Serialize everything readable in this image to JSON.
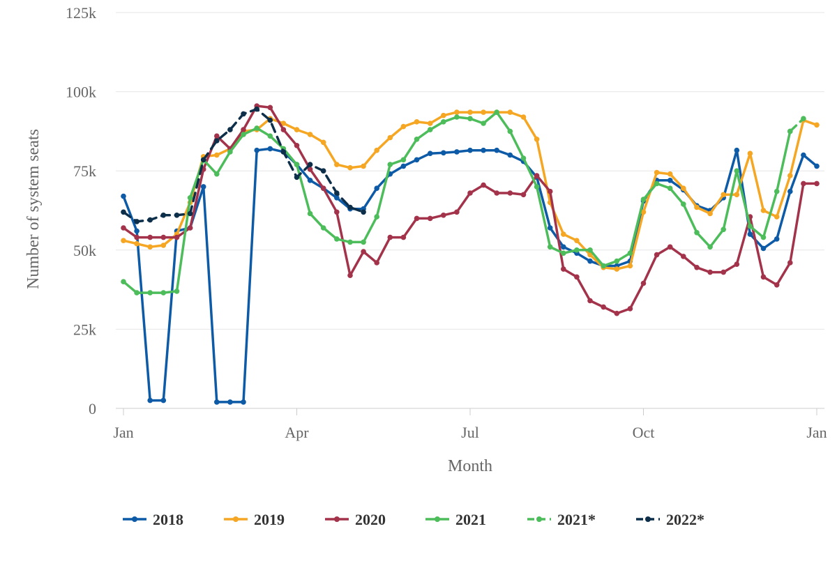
{
  "chart_data": {
    "type": "line",
    "title": "",
    "xlabel": "Month",
    "ylabel": "Number of system seats",
    "x_unit": "week of year",
    "xlim": [
      1,
      53
    ],
    "ylim": [
      0,
      125000
    ],
    "x_ticks": [
      {
        "week": 1,
        "label": "Jan"
      },
      {
        "week": 14,
        "label": "Apr"
      },
      {
        "week": 27,
        "label": "Jul"
      },
      {
        "week": 40,
        "label": "Oct"
      },
      {
        "week": 53,
        "label": "Jan"
      }
    ],
    "y_ticks": [
      {
        "value": 0,
        "label": "0"
      },
      {
        "value": 25000,
        "label": "25k"
      },
      {
        "value": 50000,
        "label": "50k"
      },
      {
        "value": 75000,
        "label": "75k"
      },
      {
        "value": 100000,
        "label": "100k"
      },
      {
        "value": 125000,
        "label": "125k"
      }
    ],
    "grid": "horizontal",
    "legend_position": "bottom",
    "series": [
      {
        "name": "2018",
        "color": "#0d5aa7",
        "dashed": false,
        "x": [
          1,
          2,
          3,
          4,
          5,
          6,
          7,
          8,
          9,
          10,
          11,
          12,
          13,
          14,
          15,
          16,
          17,
          18,
          19,
          20,
          21,
          22,
          23,
          24,
          25,
          26,
          27,
          28,
          29,
          30,
          31,
          32,
          33,
          34,
          35,
          36,
          37,
          38,
          39,
          40,
          41,
          42,
          43,
          44,
          45,
          46,
          47,
          48,
          49,
          50,
          51,
          52,
          53
        ],
        "values": [
          67000,
          56000,
          2500,
          2500,
          56000,
          57000,
          70000,
          2000,
          2000,
          2000,
          81500,
          82000,
          81000,
          77000,
          72000,
          69500,
          66500,
          63000,
          63000,
          69500,
          74000,
          76500,
          78500,
          80500,
          80700,
          81000,
          81500,
          81500,
          81500,
          80000,
          78000,
          73000,
          57000,
          51000,
          49000,
          46500,
          45000,
          45000,
          46500,
          65500,
          72000,
          72000,
          69000,
          64000,
          62500,
          66500,
          81500,
          55000,
          50500,
          53500,
          68500,
          80000,
          76500
        ]
      },
      {
        "name": "2019",
        "color": "#f5a623",
        "dashed": false,
        "x": [
          1,
          2,
          3,
          4,
          5,
          6,
          7,
          8,
          9,
          10,
          11,
          12,
          13,
          14,
          15,
          16,
          17,
          18,
          19,
          20,
          21,
          22,
          23,
          24,
          25,
          26,
          27,
          28,
          29,
          30,
          31,
          32,
          33,
          34,
          35,
          36,
          37,
          38,
          39,
          40,
          41,
          42,
          43,
          44,
          45,
          46,
          47,
          48,
          49,
          50,
          51,
          52,
          53
        ],
        "values": [
          53000,
          52000,
          51000,
          51500,
          55000,
          65000,
          79500,
          80000,
          82000,
          87500,
          88000,
          91500,
          90000,
          88000,
          86500,
          84000,
          77000,
          76000,
          76500,
          81500,
          85500,
          89000,
          90500,
          90000,
          92500,
          93500,
          93500,
          93500,
          93500,
          93500,
          92000,
          85000,
          65000,
          55000,
          53000,
          48500,
          44500,
          44000,
          45000,
          62000,
          74500,
          74000,
          69500,
          63500,
          61500,
          67500,
          67500,
          80500,
          62500,
          60500,
          73500,
          91000,
          89500
        ]
      },
      {
        "name": "2020",
        "color": "#a3334a",
        "dashed": false,
        "x": [
          1,
          2,
          3,
          4,
          5,
          6,
          7,
          8,
          9,
          10,
          11,
          12,
          13,
          14,
          15,
          16,
          17,
          18,
          19,
          20,
          21,
          22,
          23,
          24,
          25,
          26,
          27,
          28,
          29,
          30,
          31,
          32,
          33,
          34,
          35,
          36,
          37,
          38,
          39,
          40,
          41,
          42,
          43,
          44,
          45,
          46,
          47,
          48,
          49,
          50,
          51,
          52,
          53
        ],
        "values": [
          57000,
          54000,
          54000,
          54000,
          54000,
          57000,
          75500,
          86000,
          82000,
          88000,
          95500,
          95000,
          88000,
          83000,
          75500,
          69500,
          62000,
          42000,
          49500,
          46000,
          54000,
          54000,
          60000,
          60000,
          61000,
          62000,
          68000,
          70500,
          68000,
          68000,
          67500,
          73500,
          68500,
          44000,
          41500,
          34000,
          32000,
          30000,
          31500,
          39500,
          48500,
          51000,
          48000,
          44500,
          43000,
          43000,
          45500,
          60500,
          41500,
          39000,
          46000,
          71000,
          71000
        ]
      },
      {
        "name": "2021",
        "color": "#4dbd5b",
        "dashed": false,
        "x": [
          1,
          2,
          3,
          4,
          5,
          6,
          7,
          8,
          9,
          10,
          11,
          12,
          13,
          14,
          15,
          16,
          17,
          18,
          19,
          20,
          21,
          22,
          23,
          24,
          25,
          26,
          27,
          28,
          29,
          30,
          31,
          32,
          33,
          34,
          35,
          36,
          37,
          38,
          39,
          40,
          41,
          42,
          43,
          44,
          45,
          46,
          47,
          48,
          49,
          50,
          51
        ],
        "values": [
          40000,
          36500,
          36500,
          36500,
          37000,
          66500,
          78500,
          74000,
          81000,
          86500,
          88500,
          86000,
          82000,
          77000,
          61500,
          57000,
          53500,
          52500,
          52500,
          60500,
          77000,
          78500,
          85000,
          88000,
          90500,
          92000,
          91500,
          90000,
          93500,
          87500,
          79000,
          70000,
          51000,
          49000,
          50000,
          50000,
          45000,
          46500,
          49000,
          66000,
          71000,
          69500,
          64500,
          55500,
          51000,
          56500,
          75000,
          57500,
          54000,
          68500,
          87500
        ]
      },
      {
        "name": "2021*",
        "color": "#4dbd5b",
        "dashed": true,
        "x": [
          51,
          52
        ],
        "values": [
          87500,
          91500
        ]
      },
      {
        "name": "2022*",
        "color": "#0d2f4a",
        "dashed": true,
        "x": [
          1,
          2,
          3,
          4,
          5,
          6,
          7,
          8,
          9,
          10,
          11,
          12,
          13,
          14,
          15,
          16,
          17,
          18,
          19
        ],
        "values": [
          62000,
          59000,
          59500,
          61000,
          61000,
          61500,
          78500,
          84500,
          88000,
          93000,
          94500,
          91000,
          81000,
          73000,
          77000,
          75000,
          68000,
          63500,
          62000
        ]
      }
    ]
  }
}
